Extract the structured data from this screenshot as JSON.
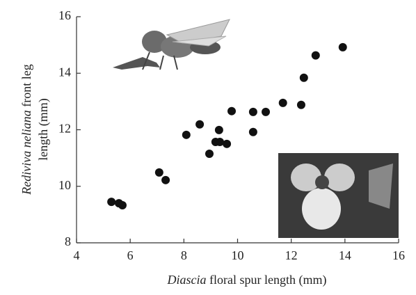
{
  "chart_data": {
    "type": "scatter",
    "xlabel": [
      "Diascia",
      " floral spur length (mm)"
    ],
    "ylabel": [
      "Rediviva neliana",
      " front leg",
      "length (mm)"
    ],
    "x": [
      5.3,
      5.58,
      5.71,
      7.08,
      7.32,
      8.09,
      8.59,
      8.95,
      9.18,
      9.31,
      9.34,
      9.6,
      9.78,
      10.58,
      10.58,
      11.05,
      11.69,
      12.37,
      12.47,
      12.91,
      13.92
    ],
    "values": [
      9.45,
      9.4,
      9.33,
      10.49,
      10.22,
      11.82,
      12.19,
      11.15,
      11.57,
      11.99,
      11.57,
      11.5,
      12.66,
      12.63,
      11.92,
      12.63,
      12.95,
      12.88,
      13.84,
      14.63,
      14.92
    ],
    "color": "#111111",
    "xlim": [
      4,
      16
    ],
    "xticks": [
      4,
      6,
      8,
      10,
      12,
      14,
      16
    ],
    "ylim": [
      8,
      16
    ],
    "yticks": [
      8,
      10,
      12,
      14,
      16
    ]
  }
}
